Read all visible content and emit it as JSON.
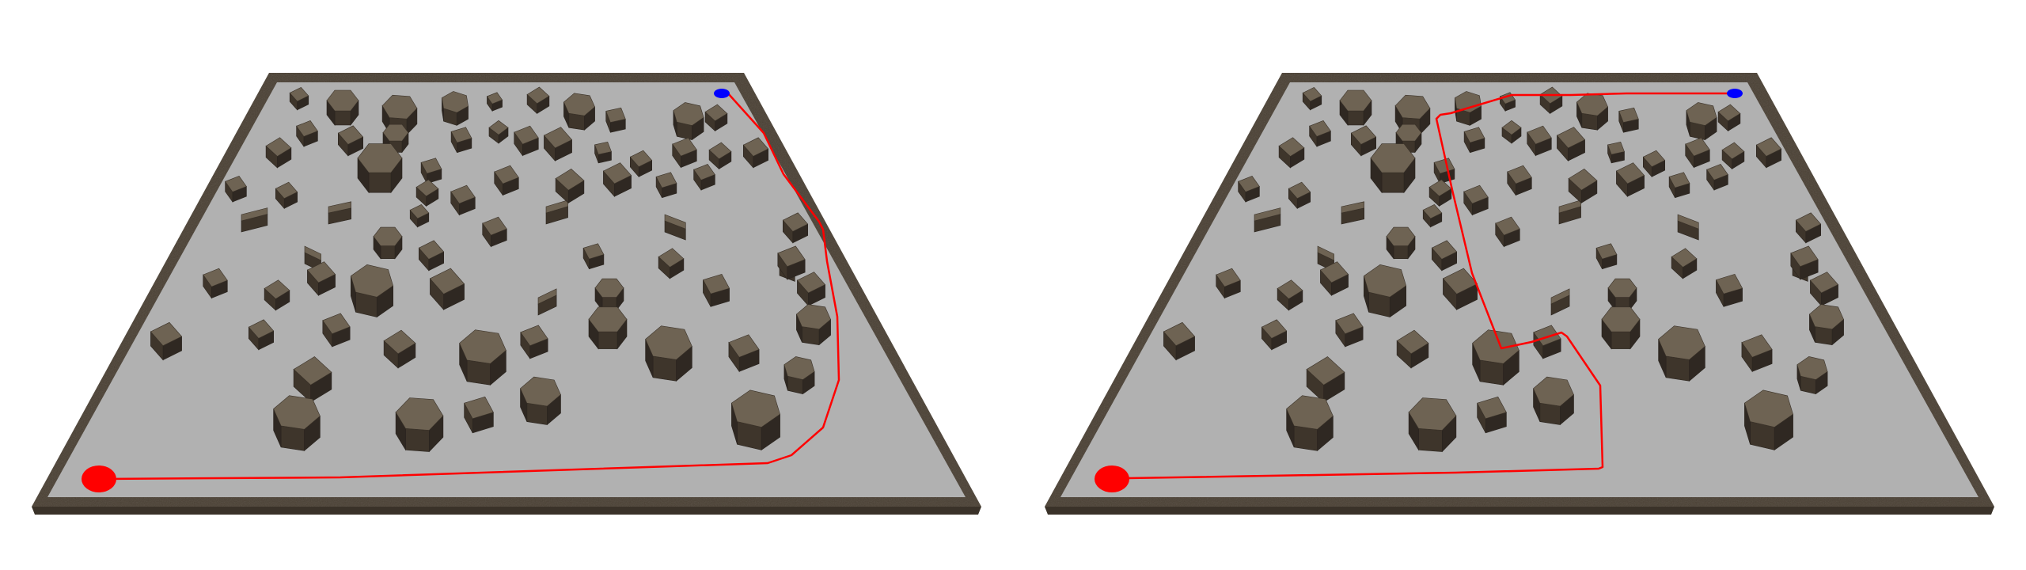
{
  "scene": {
    "description_free": true,
    "colors": {
      "background": "#ffffff",
      "floor": "#b1b1b1",
      "wall": "#4a4034",
      "wall_top": "#6b5e4e",
      "obstacle_top": "#6e6353",
      "obstacle_side": "#3e352b",
      "obstacle_dark": "#2f2822",
      "path": "#ff0000",
      "start_marker": "#ff0000",
      "goal_marker": "#0000ff"
    },
    "panels": [
      {
        "id": "left",
        "path_kind": "smooth-around"
      },
      {
        "id": "right",
        "path_kind": "zigzag-through"
      }
    ]
  }
}
